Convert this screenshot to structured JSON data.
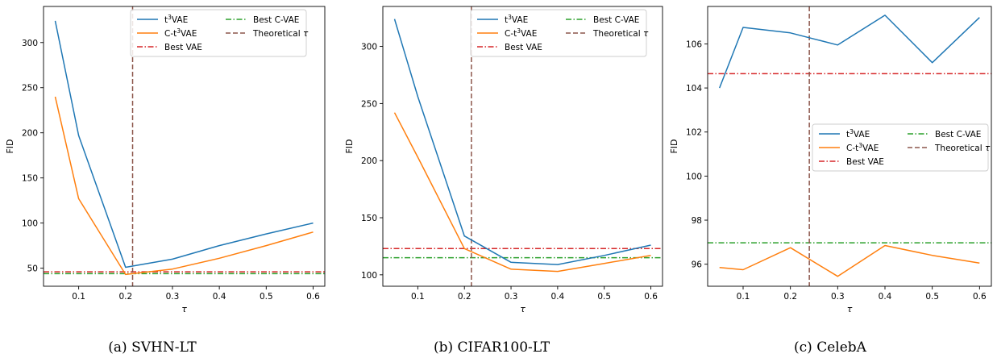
{
  "chart_data": [
    {
      "type": "line",
      "caption": "(a) SVHN-LT",
      "xlabel": "τ",
      "ylabel": "FID",
      "xlim": [
        0.025,
        0.625
      ],
      "ylim": [
        30,
        340
      ],
      "xticks": [
        0.1,
        0.2,
        0.3,
        0.4,
        0.5,
        0.6
      ],
      "yticks": [
        50,
        100,
        150,
        200,
        250,
        300
      ],
      "series": [
        {
          "name": "t³VAE",
          "color": "#1f77b4",
          "style": "solid",
          "x": [
            0.05,
            0.1,
            0.2,
            0.3,
            0.4,
            0.5,
            0.6
          ],
          "y": [
            324,
            197,
            51,
            60,
            75,
            88,
            100
          ]
        },
        {
          "name": "C-t³VAE",
          "color": "#ff7f0e",
          "style": "solid",
          "x": [
            0.05,
            0.1,
            0.2,
            0.3,
            0.4,
            0.5,
            0.6
          ],
          "y": [
            240,
            127,
            43,
            49,
            61,
            75,
            90
          ]
        }
      ],
      "hlines": [
        {
          "name": "Best VAE",
          "color": "#d62728",
          "style": "dashdot",
          "y": 46
        },
        {
          "name": "Best C-VAE",
          "color": "#2ca02c",
          "style": "dashdot",
          "y": 44
        }
      ],
      "vlines": [
        {
          "name": "Theoretical τ",
          "color": "#8c564b",
          "style": "dashed",
          "x": 0.215
        }
      ],
      "legend": "top-right",
      "grid": false
    },
    {
      "type": "line",
      "caption": "(b) CIFAR100-LT",
      "xlabel": "τ",
      "ylabel": "FID",
      "xlim": [
        0.025,
        0.625
      ],
      "ylim": [
        90,
        335
      ],
      "xticks": [
        0.1,
        0.2,
        0.3,
        0.4,
        0.5,
        0.6
      ],
      "yticks": [
        100,
        150,
        200,
        250,
        300
      ],
      "series": [
        {
          "name": "t³VAE",
          "color": "#1f77b4",
          "style": "solid",
          "x": [
            0.05,
            0.1,
            0.2,
            0.3,
            0.4,
            0.5,
            0.6
          ],
          "y": [
            324,
            256,
            134,
            111,
            109,
            117,
            126
          ]
        },
        {
          "name": "C-t³VAE",
          "color": "#ff7f0e",
          "style": "solid",
          "x": [
            0.05,
            0.1,
            0.2,
            0.3,
            0.4,
            0.5,
            0.6
          ],
          "y": [
            242,
            203,
            123,
            105,
            103,
            110,
            117
          ]
        }
      ],
      "hlines": [
        {
          "name": "Best VAE",
          "color": "#d62728",
          "style": "dashdot",
          "y": 123
        },
        {
          "name": "Best C-VAE",
          "color": "#2ca02c",
          "style": "dashdot",
          "y": 115
        }
      ],
      "vlines": [
        {
          "name": "Theoretical τ",
          "color": "#8c564b",
          "style": "dashed",
          "x": 0.215
        }
      ],
      "legend": "top-right",
      "grid": false
    },
    {
      "type": "line",
      "caption": "(c) CelebA",
      "xlabel": "τ",
      "ylabel": "FID",
      "xlim": [
        0.025,
        0.625
      ],
      "ylim": [
        95,
        107.7
      ],
      "xticks": [
        0.1,
        0.2,
        0.3,
        0.4,
        0.5,
        0.6
      ],
      "yticks": [
        96,
        98,
        100,
        102,
        104,
        106
      ],
      "series": [
        {
          "name": "t³VAE",
          "color": "#1f77b4",
          "style": "solid",
          "x": [
            0.05,
            0.1,
            0.2,
            0.3,
            0.4,
            0.5,
            0.6
          ],
          "y": [
            104.0,
            106.75,
            106.5,
            105.95,
            107.3,
            105.15,
            107.2
          ]
        },
        {
          "name": "C-t³VAE",
          "color": "#ff7f0e",
          "style": "solid",
          "x": [
            0.05,
            0.1,
            0.2,
            0.3,
            0.4,
            0.5,
            0.6
          ],
          "y": [
            95.85,
            95.75,
            96.75,
            95.45,
            96.85,
            96.4,
            96.05
          ]
        }
      ],
      "hlines": [
        {
          "name": "Best VAE",
          "color": "#d62728",
          "style": "dashdot",
          "y": 104.65
        },
        {
          "name": "Best C-VAE",
          "color": "#2ca02c",
          "style": "dashdot",
          "y": 96.97
        }
      ],
      "vlines": [
        {
          "name": "Theoretical τ",
          "color": "#8c564b",
          "style": "dashed",
          "x": 0.24
        }
      ],
      "legend": "center-right",
      "grid": false
    }
  ]
}
